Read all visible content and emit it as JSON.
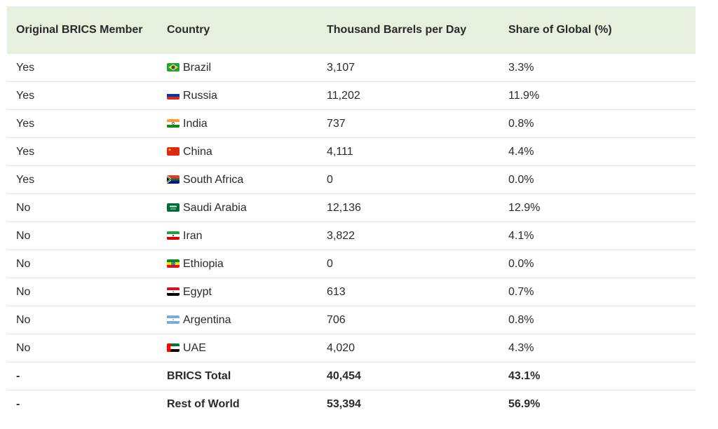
{
  "table": {
    "headers": {
      "member": "Original BRICS Member",
      "country": "Country",
      "barrels": "Thousand Barrels per Day",
      "share": "Share of Global (%)"
    },
    "rows": [
      {
        "member": "Yes",
        "country": "Brazil",
        "flag": "brazil-flag-icon",
        "barrels": "3,107",
        "share": "3.3%"
      },
      {
        "member": "Yes",
        "country": "Russia",
        "flag": "russia-flag-icon",
        "barrels": "11,202",
        "share": "11.9%"
      },
      {
        "member": "Yes",
        "country": "India",
        "flag": "india-flag-icon",
        "barrels": "737",
        "share": "0.8%"
      },
      {
        "member": "Yes",
        "country": "China",
        "flag": "china-flag-icon",
        "barrels": "4,111",
        "share": "4.4%"
      },
      {
        "member": "Yes",
        "country": "South Africa",
        "flag": "south-africa-flag-icon",
        "barrels": "0",
        "share": "0.0%"
      },
      {
        "member": "No",
        "country": "Saudi Arabia",
        "flag": "saudi-arabia-flag-icon",
        "barrels": "12,136",
        "share": "12.9%"
      },
      {
        "member": "No",
        "country": "Iran",
        "flag": "iran-flag-icon",
        "barrels": "3,822",
        "share": "4.1%"
      },
      {
        "member": "No",
        "country": "Ethiopia",
        "flag": "ethiopia-flag-icon",
        "barrels": "0",
        "share": "0.0%"
      },
      {
        "member": "No",
        "country": "Egypt",
        "flag": "egypt-flag-icon",
        "barrels": "613",
        "share": "0.7%"
      },
      {
        "member": "No",
        "country": "Argentina",
        "flag": "argentina-flag-icon",
        "barrels": "706",
        "share": "0.8%"
      },
      {
        "member": "No",
        "country": "UAE",
        "flag": "uae-flag-icon",
        "barrels": "4,020",
        "share": "4.3%"
      }
    ],
    "totals": [
      {
        "member": "-",
        "country": "BRICS Total",
        "barrels": "40,454",
        "share": "43.1%"
      },
      {
        "member": "-",
        "country": "Rest of World",
        "barrels": "53,394",
        "share": "56.9%"
      }
    ]
  },
  "colors": {
    "header_bg": "#e7f0de",
    "row_border": "#e2e2e2",
    "text": "#2a2a2a"
  }
}
